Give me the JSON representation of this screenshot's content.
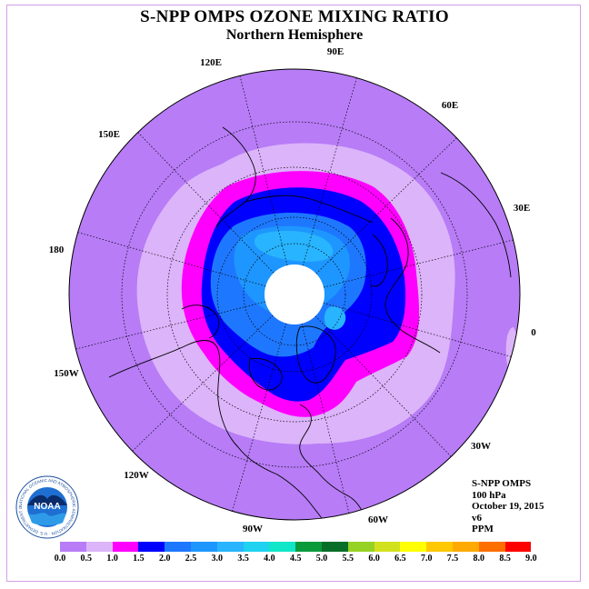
{
  "header": {
    "title": "S-NPP OMPS OZONE MIXING RATIO",
    "subtitle": "Northern Hemisphere"
  },
  "longitude_labels": [
    "90E",
    "60E",
    "30E",
    "0",
    "30W",
    "60W",
    "90W",
    "120W",
    "150W",
    "180",
    "150E",
    "120E"
  ],
  "info": {
    "instrument": "S-NPP OMPS",
    "level": "100 hPa",
    "date": "October 19, 2015",
    "version": "v6",
    "units": "PPM"
  },
  "logo": {
    "name": "noaa-logo",
    "text": "NOAA",
    "ring_text": "NATIONAL OCEANIC AND ATMOSPHERIC ADMINISTRATION · U.S. DEPARTMENT OF COMMERCE"
  },
  "colorbar": {
    "ticks": [
      "0.0",
      "0.5",
      "1.0",
      "1.5",
      "2.0",
      "2.5",
      "3.0",
      "3.5",
      "4.0",
      "4.5",
      "5.0",
      "5.5",
      "6.0",
      "6.5",
      "7.0",
      "7.5",
      "8.0",
      "8.5",
      "9.0"
    ],
    "colors": [
      "#b77cf6",
      "#dcb4fa",
      "#ff00ff",
      "#0000ff",
      "#1e78ff",
      "#1e96ff",
      "#28b4ff",
      "#1ed2f0",
      "#10e6c8",
      "#0a9a3c",
      "#086e28",
      "#96d223",
      "#d2e11e",
      "#ffff00",
      "#ffc800",
      "#ffaa00",
      "#ff6e00",
      "#ff0000",
      "#825028"
    ]
  },
  "map_colors": {
    "background": "#b77cf6",
    "light_violet": "#dcb4fa",
    "magenta": "#ff00ff",
    "blue": "#0000ff",
    "mid_blue": "#1e78ff",
    "light_blue": "#1e96ff",
    "sky_blue": "#28b4ff",
    "no_data": "#ffffff"
  }
}
